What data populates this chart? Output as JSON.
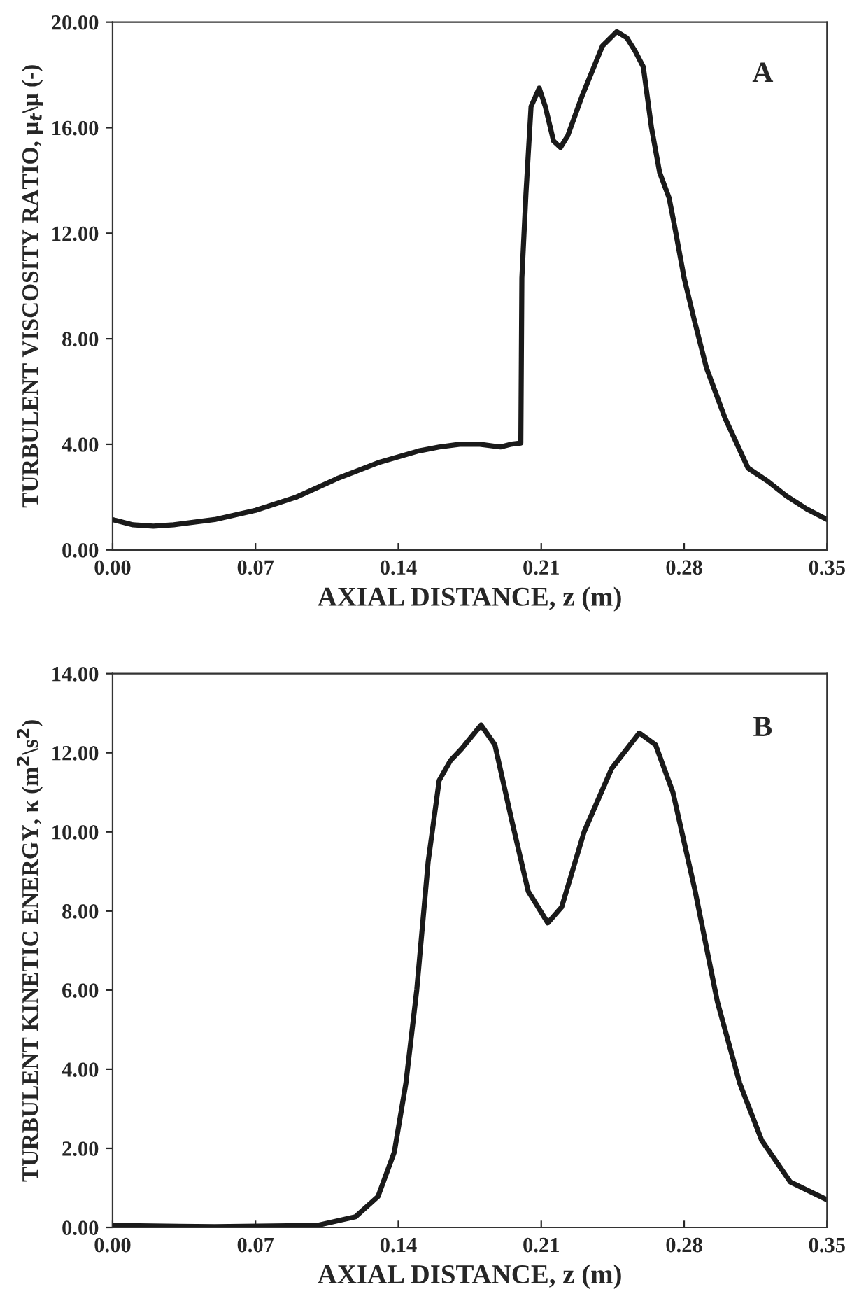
{
  "chart_data": [
    {
      "type": "line",
      "xlabel": "AXIAL DISTANCE, z (m)",
      "ylabel": "TURBULENT VISCOSITY RATIO, μ$_{t}$\\μ (-)",
      "annotations": [
        "A"
      ],
      "x": [
        0,
        0.01,
        0.02,
        0.03,
        0.05,
        0.07,
        0.09,
        0.11,
        0.13,
        0.15,
        0.16,
        0.17,
        0.18,
        0.19,
        0.195,
        0.2,
        0.2005,
        0.2025,
        0.205,
        0.209,
        0.212,
        0.216,
        0.2194,
        0.223,
        0.23,
        0.24,
        0.247,
        0.252,
        0.256,
        0.26,
        0.264,
        0.268,
        0.2726,
        0.275,
        0.28,
        0.285,
        0.2909,
        0.3,
        0.3113,
        0.321,
        0.33,
        0.34,
        0.35
      ],
      "series": [
        {
          "color": "#1a1a1a",
          "values": [
            1.15,
            0.95,
            0.9,
            0.95,
            1.15,
            1.5,
            2.0,
            2.7,
            3.3,
            3.75,
            3.9,
            4.0,
            4.0,
            3.9,
            4.0,
            4.05,
            10.3,
            13.5,
            16.8,
            17.5,
            16.8,
            15.5,
            15.25,
            15.7,
            17.2,
            19.1,
            19.64,
            19.4,
            18.9,
            18.3,
            16.0,
            14.3,
            13.35,
            12.4,
            10.3,
            8.7,
            6.9,
            5.0,
            3.1,
            2.6,
            2.05,
            1.55,
            1.15
          ]
        }
      ],
      "xlim": [
        0,
        0.35
      ],
      "ylim": [
        0,
        20
      ],
      "xticks": [
        {
          "value": 0,
          "label": "0.00"
        },
        {
          "value": 0.07,
          "label": "0.07"
        },
        {
          "value": 0.14,
          "label": "0.14"
        },
        {
          "value": 0.21,
          "label": "0.21"
        },
        {
          "value": 0.28,
          "label": "0.28"
        },
        {
          "value": 0.35,
          "label": "0.35"
        }
      ],
      "yticks": [
        {
          "value": 0,
          "label": "0.00"
        },
        {
          "value": 4,
          "label": "4.00"
        },
        {
          "value": 8,
          "label": "8.00"
        },
        {
          "value": 12,
          "label": "12.00"
        },
        {
          "value": 16,
          "label": "16.00"
        },
        {
          "value": 20,
          "label": "20.00"
        }
      ],
      "grid": false,
      "legend": false,
      "line_style": "solid",
      "marker": "none"
    },
    {
      "type": "line",
      "xlabel": "AXIAL DISTANCE, z (m)",
      "ylabel": "TURBULENT KINETIC ENERGY, κ (m$^{2}$\\s$^{2}$)",
      "annotations": [
        "B"
      ],
      "x": [
        0,
        0.05,
        0.1,
        0.119,
        0.13,
        0.138,
        0.1437,
        0.149,
        0.1546,
        0.16,
        0.1655,
        0.171,
        0.1805,
        0.1873,
        0.1955,
        0.2036,
        0.2132,
        0.22,
        0.231,
        0.2445,
        0.258,
        0.266,
        0.2745,
        0.2854,
        0.2963,
        0.3072,
        0.318,
        0.332,
        0.35
      ],
      "series": [
        {
          "color": "#1a1a1a",
          "values": [
            0.05,
            0.02,
            0.05,
            0.27,
            0.78,
            1.9,
            3.65,
            6.0,
            9.25,
            11.3,
            11.8,
            12.1,
            12.7,
            12.2,
            10.3,
            8.5,
            7.7,
            8.1,
            10.0,
            11.6,
            12.5,
            12.2,
            11.0,
            8.5,
            5.7,
            3.65,
            2.2,
            1.15,
            0.7
          ]
        }
      ],
      "xlim": [
        0,
        0.35
      ],
      "ylim": [
        0,
        14
      ],
      "xticks": [
        {
          "value": 0,
          "label": "0.00"
        },
        {
          "value": 0.07,
          "label": "0.07"
        },
        {
          "value": 0.14,
          "label": "0.14"
        },
        {
          "value": 0.21,
          "label": "0.21"
        },
        {
          "value": 0.28,
          "label": "0.28"
        },
        {
          "value": 0.35,
          "label": "0.35"
        }
      ],
      "yticks": [
        {
          "value": 0,
          "label": "0.00"
        },
        {
          "value": 2,
          "label": "2.00"
        },
        {
          "value": 4,
          "label": "4.00"
        },
        {
          "value": 6,
          "label": "6.00"
        },
        {
          "value": 8,
          "label": "8.00"
        },
        {
          "value": 10,
          "label": "10.00"
        },
        {
          "value": 12,
          "label": "12.00"
        },
        {
          "value": 14,
          "label": "14.00"
        }
      ],
      "grid": false,
      "legend": false,
      "line_style": "solid",
      "marker": "none"
    }
  ]
}
